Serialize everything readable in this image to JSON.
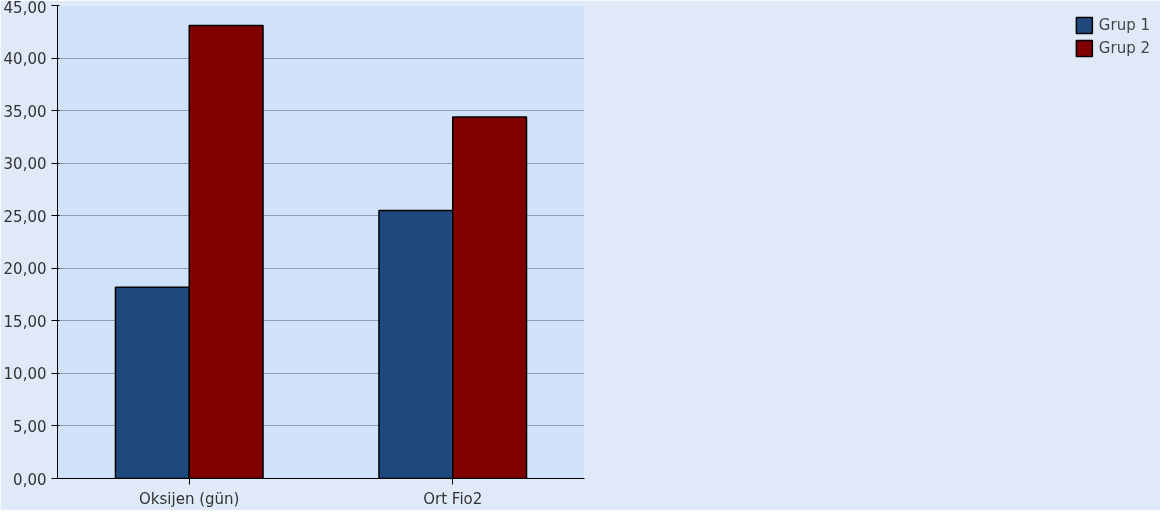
{
  "chart_data": {
    "type": "bar",
    "categories": [
      "Oksijen (gün)",
      "Ort Fio2"
    ],
    "series": [
      {
        "name": "Grup 1",
        "color": "#1f497d",
        "values": [
          18.2,
          25.5
        ]
      },
      {
        "name": "Grup 2",
        "color": "#800000",
        "values": [
          43.1,
          34.4
        ]
      }
    ],
    "ylim": [
      0,
      45
    ],
    "yticks": [
      {
        "value": 0,
        "label": "0,00"
      },
      {
        "value": 5,
        "label": "5,00"
      },
      {
        "value": 10,
        "label": "10,00"
      },
      {
        "value": 15,
        "label": "15,00"
      },
      {
        "value": 20,
        "label": "20,00"
      },
      {
        "value": 25,
        "label": "25,00"
      },
      {
        "value": 30,
        "label": "30,00"
      },
      {
        "value": 35,
        "label": "35,00"
      },
      {
        "value": 40,
        "label": "40,00"
      },
      {
        "value": 45,
        "label": "45,00"
      }
    ],
    "grid": "y",
    "legend": "right"
  }
}
